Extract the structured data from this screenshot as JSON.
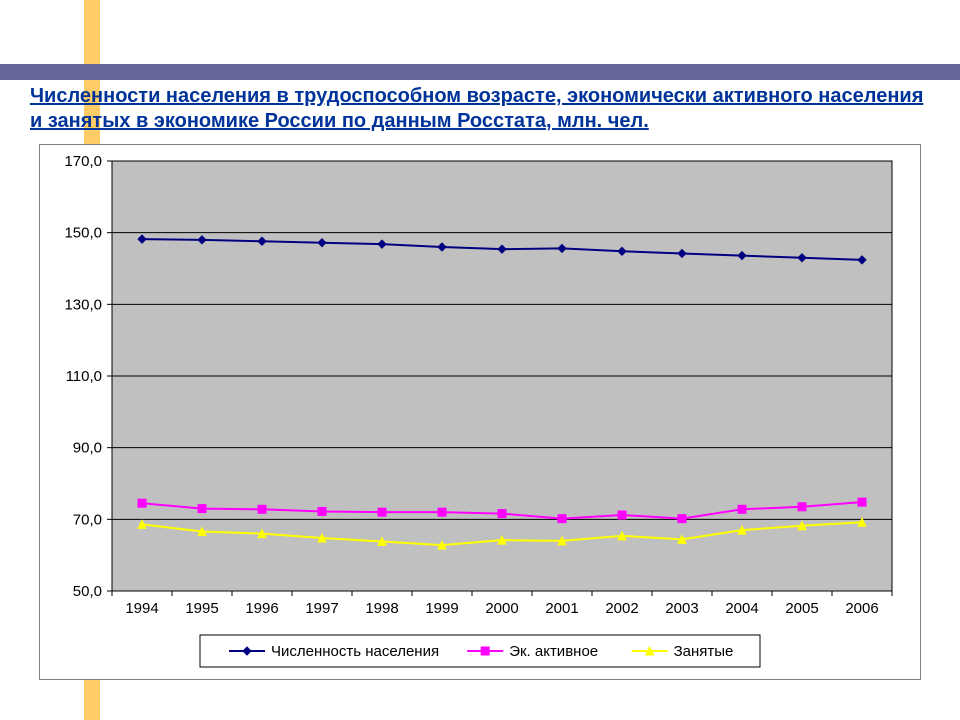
{
  "title_text": "Численности населения в трудоспособном возрасте, экономически активного населения и занятых в экономике России по данным Росстата, млн. чел.",
  "chart": {
    "type": "line",
    "plot_background": "#c0c0c0",
    "border_color": "#000000",
    "grid_color": "#000000",
    "ylim": [
      50,
      170
    ],
    "ytick_step": 20,
    "yticks": [
      "50,0",
      "70,0",
      "90,0",
      "110,0",
      "130,0",
      "150,0",
      "170,0"
    ],
    "xlabels": [
      "1994",
      "1995",
      "1996",
      "1997",
      "1998",
      "1999",
      "2000",
      "2001",
      "2002",
      "2003",
      "2004",
      "2005",
      "2006"
    ],
    "xlabel_fontsize": 15,
    "ylabel_fontsize": 15,
    "series": [
      {
        "name": "Численность населения",
        "color": "#000080",
        "marker": "diamond",
        "values": [
          148.2,
          148.0,
          147.6,
          147.2,
          146.8,
          146.0,
          145.4,
          145.6,
          144.8,
          144.2,
          143.6,
          143.0,
          142.4
        ]
      },
      {
        "name": "Эк. активное",
        "color": "#ff00ff",
        "marker": "square",
        "values": [
          74.5,
          73.0,
          72.8,
          72.2,
          72.0,
          72.0,
          71.6,
          70.2,
          71.2,
          70.2,
          72.8,
          73.5,
          74.8
        ]
      },
      {
        "name": "Занятые",
        "color": "#ffff00",
        "marker": "triangle",
        "values": [
          68.6,
          66.6,
          66.0,
          64.8,
          63.8,
          62.8,
          64.2,
          64.0,
          65.4,
          64.4,
          67.0,
          68.2,
          69.2
        ]
      }
    ],
    "marker_size": 8,
    "line_width": 2
  }
}
